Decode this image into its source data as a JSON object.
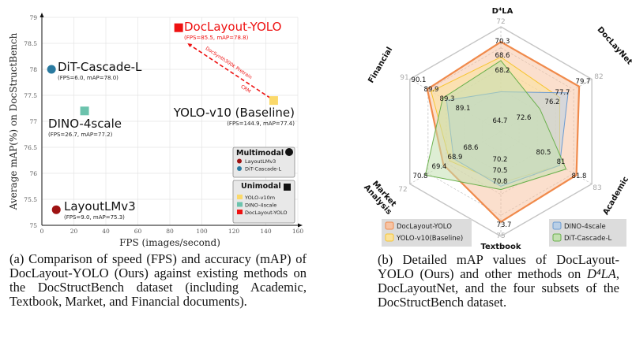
{
  "chart_data": [
    {
      "type": "scatter",
      "xlabel": "FPS (images/second)",
      "ylabel": "Average mAP(%) on DocStructBench",
      "xlim": [
        0,
        160
      ],
      "ylim": [
        75,
        79
      ],
      "xticks": [
        "0",
        "20",
        "40",
        "60",
        "80",
        "100",
        "120",
        "140",
        "160"
      ],
      "yticks": [
        "75",
        "75.5",
        "76",
        "76.5",
        "77",
        "77.5",
        "78",
        "78.5",
        "79"
      ],
      "grid": true,
      "points": [
        {
          "name": "DocLayout-YOLO",
          "x": 85.5,
          "y": 78.8,
          "shape": "square",
          "color": "#ee1111",
          "sub": "(FPS=85.5, mAP=78.8)"
        },
        {
          "name": "DiT-Cascade-L",
          "x": 6.0,
          "y": 78.0,
          "shape": "circle",
          "color": "#2a7aa0",
          "sub": "(FPS=6.0, mAP=78.0)"
        },
        {
          "name": "DINO-4scale",
          "x": 26.7,
          "y": 77.2,
          "shape": "square",
          "color": "#6cc3ad",
          "sub": "(FPS=26.7, mAP=77.2)"
        },
        {
          "name": "YOLO-v10 (Baseline)",
          "x": 144.9,
          "y": 77.4,
          "shape": "square",
          "color": "#fbd96a",
          "sub": "(FPS=144.9, mAP=77.4)"
        },
        {
          "name": "LayoutLMv3",
          "x": 9.0,
          "y": 75.3,
          "shape": "circle",
          "color": "#9e1212",
          "sub": "(FPS=9.0, mAP=75.3)"
        }
      ],
      "arrow": {
        "from": [
          144.9,
          77.4
        ],
        "to": [
          91,
          78.5
        ],
        "labels": [
          "DocSynth300k Pretrain",
          "CRM"
        ],
        "color": "#ee1111"
      },
      "legend": {
        "groups": [
          {
            "title": "Multimodal",
            "marker": "circle",
            "items": [
              {
                "label": "LayoutLMv3",
                "color": "#9e1212"
              },
              {
                "label": "DiT-Cascade-L",
                "color": "#2a7aa0"
              }
            ]
          },
          {
            "title": "Unimodal",
            "marker": "square",
            "items": [
              {
                "label": "YOLO-v10m",
                "color": "#fbd96a"
              },
              {
                "label": "DINO-4scale",
                "color": "#6cc3ad"
              },
              {
                "label": "DocLayout-YOLO",
                "color": "#ee1111"
              }
            ]
          }
        ],
        "placement": "bottom-right"
      }
    },
    {
      "type": "radar",
      "axes": [
        {
          "label": "D⁴LA",
          "max": 72,
          "min": 62
        },
        {
          "label": "DocLayNet",
          "max": 82,
          "min": 68
        },
        {
          "label": "Academic",
          "max": 83,
          "min": 77
        },
        {
          "label": "Textbook",
          "max": 75,
          "min": 67
        },
        {
          "label": "Market Analysis",
          "max": 72,
          "min": 66
        },
        {
          "label": "Financial",
          "max": 91,
          "min": 87
        }
      ],
      "series": [
        {
          "name": "DocLayout-YOLO",
          "values": [
            70.3,
            79.7,
            81.8,
            73.7,
            69.4,
            90.1
          ],
          "color": "#f08a4b",
          "fill": "#f7c4a4"
        },
        {
          "name": "YOLO-v10(Baseline)",
          "values": [
            68.6,
            76.2,
            80.5,
            70.2,
            68.9,
            89.9
          ],
          "color": "#f7c531",
          "fill": "#fbe29a"
        },
        {
          "name": "DINO-4scale",
          "values": [
            64.7,
            77.7,
            80.5,
            70.5,
            68.6,
            89.1
          ],
          "color": "#6b9bd1",
          "fill": "#b9cfe6"
        },
        {
          "name": "DiT-Cascade-L",
          "values": [
            68.2,
            72.6,
            81.0,
            70.8,
            70.8,
            89.3
          ],
          "color": "#6ab04c",
          "fill": "#c3e0b0"
        }
      ]
    }
  ],
  "captions": {
    "a": "(a) Comparison of speed (FPS) and accuracy (mAP) of DocLayout-YOLO (Ours) against existing methods on the DocStructBench dataset (including Academic, Textbook, Market, and Financial documents).",
    "b_pre": "(b) Detailed mAP values of DocLayout-YOLO (Ours) and other methods on ",
    "b_math": "D⁴LA",
    "b_post": ", DocLayoutNet, and the four subsets of the DocStructBench dataset."
  }
}
